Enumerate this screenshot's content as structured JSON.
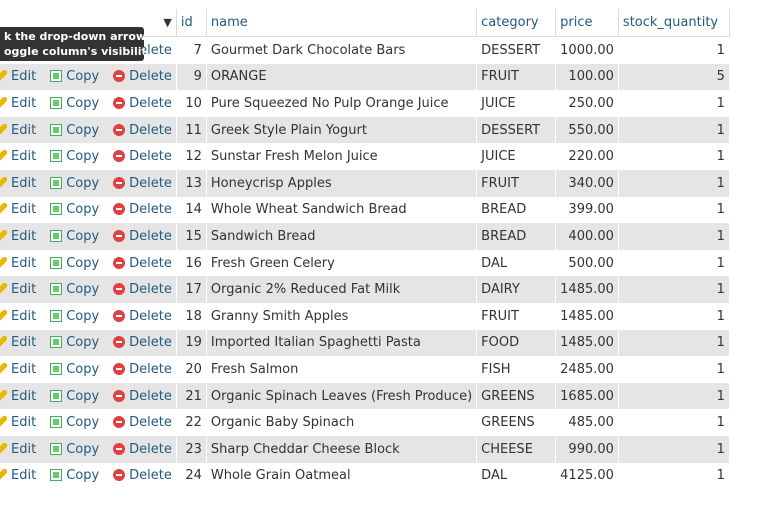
{
  "tooltip": {
    "line1": "k the drop-down arrow",
    "line2": "oggle column's visibility."
  },
  "actions": {
    "edit": "Edit",
    "copy": "Copy",
    "delete": "Delete"
  },
  "columns": {
    "id": "id",
    "name": "name",
    "category": "category",
    "price": "price",
    "stock": "stock_quantity"
  },
  "rows": [
    {
      "id": "7",
      "name": "Gourmet Dark Chocolate Bars",
      "category": "DESSERT",
      "price": "1000.00",
      "stock": "1"
    },
    {
      "id": "9",
      "name": "ORANGE",
      "category": "FRUIT",
      "price": "100.00",
      "stock": "5"
    },
    {
      "id": "10",
      "name": "Pure Squeezed No Pulp Orange Juice",
      "category": "JUICE",
      "price": "250.00",
      "stock": "1"
    },
    {
      "id": "11",
      "name": "Greek Style Plain Yogurt",
      "category": "DESSERT",
      "price": "550.00",
      "stock": "1"
    },
    {
      "id": "12",
      "name": "Sunstar Fresh Melon Juice",
      "category": "JUICE",
      "price": "220.00",
      "stock": "1"
    },
    {
      "id": "13",
      "name": "Honeycrisp Apples",
      "category": "FRUIT",
      "price": "340.00",
      "stock": "1"
    },
    {
      "id": "14",
      "name": "Whole Wheat Sandwich Bread",
      "category": "BREAD",
      "price": "399.00",
      "stock": "1"
    },
    {
      "id": "15",
      "name": "Sandwich Bread",
      "category": "BREAD",
      "price": "400.00",
      "stock": "1"
    },
    {
      "id": "16",
      "name": "Fresh Green Celery",
      "category": "DAL",
      "price": "500.00",
      "stock": "1"
    },
    {
      "id": "17",
      "name": "Organic 2% Reduced Fat Milk",
      "category": "DAIRY",
      "price": "1485.00",
      "stock": "1"
    },
    {
      "id": "18",
      "name": "Granny Smith Apples",
      "category": "FRUIT",
      "price": "1485.00",
      "stock": "1"
    },
    {
      "id": "19",
      "name": "Imported Italian Spaghetti Pasta",
      "category": "FOOD",
      "price": "1485.00",
      "stock": "1"
    },
    {
      "id": "20",
      "name": "Fresh Salmon",
      "category": "FISH",
      "price": "2485.00",
      "stock": "1"
    },
    {
      "id": "21",
      "name": "Organic Spinach Leaves (Fresh Produce)",
      "category": "GREENS",
      "price": "1685.00",
      "stock": "1"
    },
    {
      "id": "22",
      "name": "Organic Baby Spinach",
      "category": "GREENS",
      "price": "485.00",
      "stock": "1"
    },
    {
      "id": "23",
      "name": "Sharp Cheddar Cheese Block",
      "category": "CHEESE",
      "price": "990.00",
      "stock": "1"
    },
    {
      "id": "24",
      "name": "Whole Grain Oatmeal",
      "category": "DAL",
      "price": "4125.00",
      "stock": "1"
    }
  ]
}
